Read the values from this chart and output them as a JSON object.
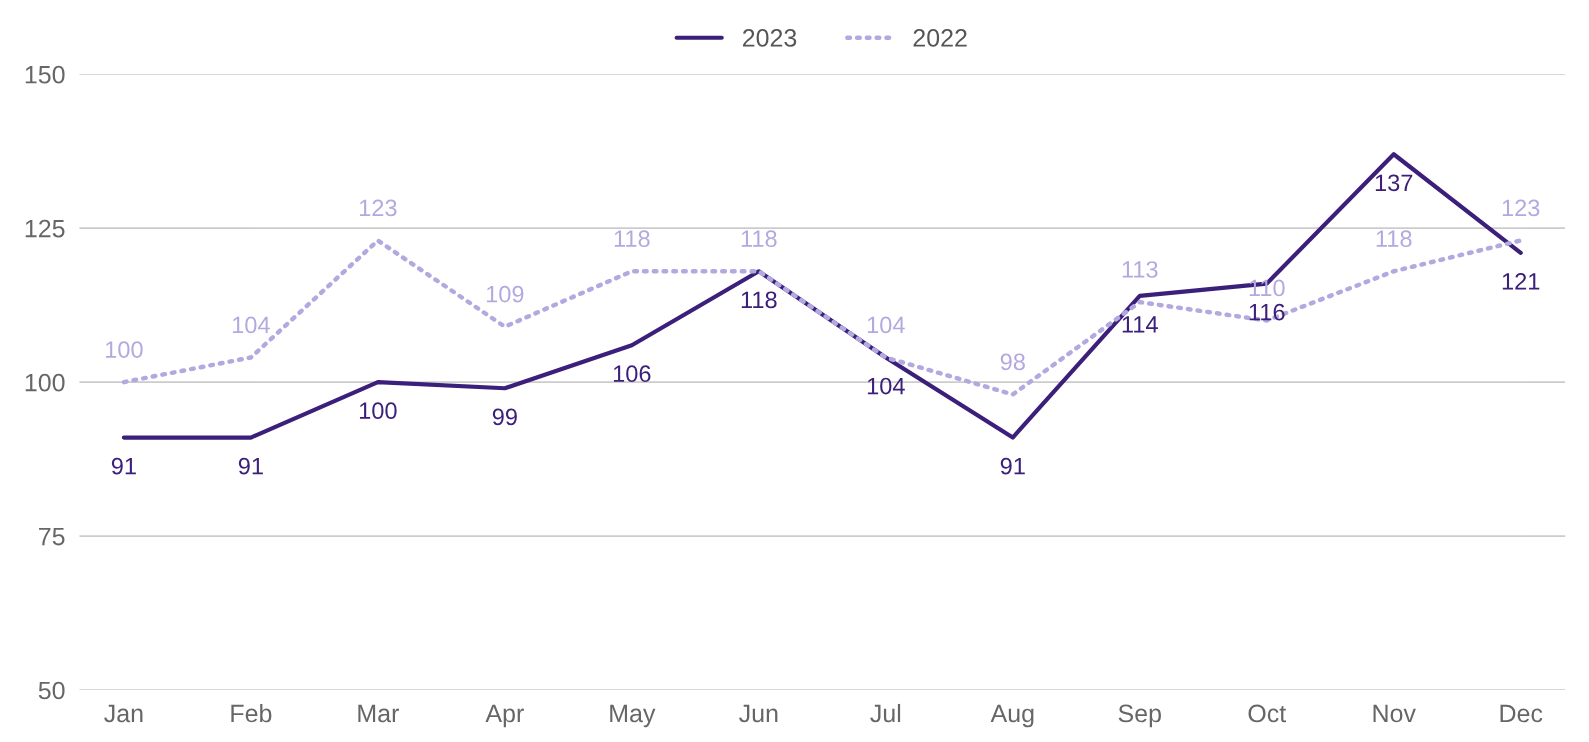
{
  "chart_data": {
    "type": "line",
    "categories": [
      "Jan",
      "Feb",
      "Mar",
      "Apr",
      "May",
      "Jun",
      "Jul",
      "Aug",
      "Sep",
      "Oct",
      "Nov",
      "Dec"
    ],
    "series": [
      {
        "name": "2023",
        "color": "#3b1f7a",
        "line_style": "solid",
        "values": [
          91,
          91,
          100,
          99,
          106,
          118,
          104,
          91,
          114,
          116,
          137,
          121
        ]
      },
      {
        "name": "2022",
        "color": "#b3a8e0",
        "line_style": "dotted",
        "values": [
          100,
          104,
          123,
          109,
          118,
          118,
          104,
          98,
          113,
          110,
          118,
          123
        ]
      }
    ],
    "ylim": [
      50,
      150
    ],
    "yticks": [
      50,
      75,
      100,
      125,
      150
    ],
    "grid": "y",
    "legend": "top",
    "data_labels": true,
    "marker": "none"
  }
}
